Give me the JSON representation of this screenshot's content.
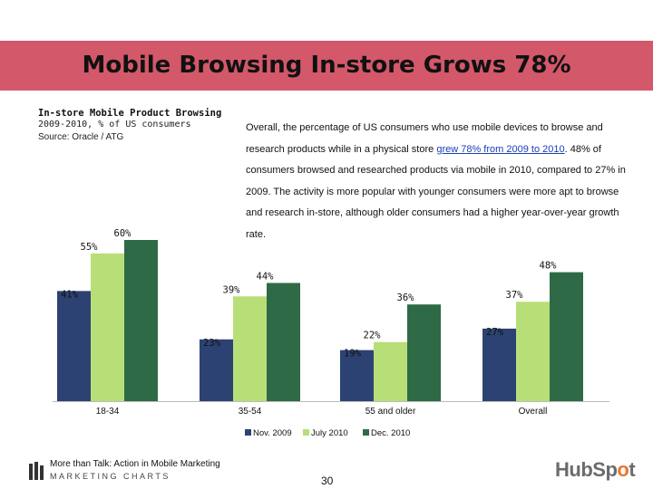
{
  "slide": {
    "title": "Mobile Browsing In-store Grows 78%",
    "chart_title": "In-store Mobile Product Browsing",
    "chart_subtitle": "2009-2010, % of US consumers",
    "chart_source": "Source: Oracle / ATG",
    "summary_before_link": "Overall, the percentage of US consumers who use mobile devices to browse and research products while in a physical store ",
    "summary_link": "grew 78% from 2009 to 2010",
    "summary_after_link": ". 48% of consumers browsed and researched products via mobile in 2010, compared to 27% in 2009. The activity is more popular with younger consumers were more apt to browse and research in-store, although older consumers had a higher year-over-year growth rate.",
    "footer_line1": "More than Talk: Action in Mobile Marketing",
    "footer_line2": "MARKETING CHARTS",
    "page_number": "30",
    "brand_hub": "HubSp",
    "brand_o": "o",
    "brand_t": "t"
  },
  "colors": {
    "banner": "#d3586a",
    "nov_2009": "#2c4272",
    "july_2010": "#b8de78",
    "dec_2010": "#2f6a46",
    "link": "#1a3fb8",
    "brand_accent": "#e8772e"
  },
  "chart_data": {
    "type": "bar",
    "categories": [
      "18-34",
      "35-54",
      "55 and older",
      "Overall"
    ],
    "series": [
      {
        "name": "Nov. 2009",
        "values": [
          41,
          23,
          19,
          27
        ],
        "labels": [
          "41%",
          "23%",
          "19%",
          "27%"
        ]
      },
      {
        "name": "July 2010",
        "values": [
          55,
          39,
          22,
          37
        ],
        "labels": [
          "55%",
          "39%",
          "22%",
          "37%"
        ]
      },
      {
        "name": "Dec. 2010",
        "values": [
          60,
          44,
          36,
          48
        ],
        "labels": [
          "60%",
          "44%",
          "36%",
          "48%"
        ]
      }
    ],
    "ylim": [
      0,
      60
    ],
    "grid": false,
    "legend_position": "bottom"
  }
}
